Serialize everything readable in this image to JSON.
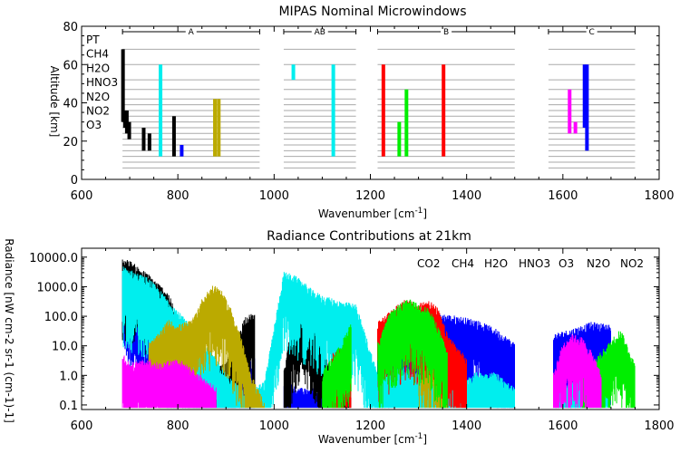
{
  "figure": {
    "background": "#ffffff",
    "molecule_colors": {
      "PT": "#000000",
      "CH4": "#ff0000",
      "H2O": "#0000ff",
      "HNO3": "#bbaa00",
      "N2O": "#00ee00",
      "NO2": "#ff00ff",
      "O3": "#00eeee"
    }
  },
  "chart_data": [
    {
      "type": "bar",
      "title": "MIPAS Nominal Microwindows",
      "xlabel": "Wavenumber [cm",
      "xlabel_sup": "-1",
      "xlabel_end": "]",
      "ylabel": "Altitude [km]",
      "xlim": [
        600,
        1800
      ],
      "ylim": [
        0,
        80
      ],
      "xticks": [
        "600",
        "800",
        "1000",
        "1200",
        "1400",
        "1600",
        "1800"
      ],
      "yticks": [
        "0",
        "20",
        "40",
        "60",
        "80"
      ],
      "grid": "horizontal gray lines at tangent altitudes within each band",
      "legend_position": "top-left",
      "legend": [
        "PT",
        "CH4",
        "H2O",
        "HNO3",
        "N2O",
        "NO2",
        "O3"
      ],
      "bands": [
        {
          "name": "A",
          "range": [
            685,
            970
          ]
        },
        {
          "name": "AB",
          "range": [
            1020,
            1170
          ]
        },
        {
          "name": "B",
          "range": [
            1215,
            1500
          ]
        },
        {
          "name": "C",
          "range": [
            1570,
            1750
          ]
        }
      ],
      "grid_altitudes": [
        6,
        9,
        12,
        15,
        18,
        21,
        24,
        27,
        30,
        33,
        36,
        39,
        42,
        47,
        52,
        60,
        68
      ],
      "microwindows": [
        {
          "molecule": "PT",
          "wavenumber": 686,
          "alt": [
            30,
            68
          ]
        },
        {
          "molecule": "PT",
          "wavenumber": 690,
          "alt": [
            27,
            36
          ]
        },
        {
          "molecule": "PT",
          "wavenumber": 694,
          "alt": [
            24,
            36
          ]
        },
        {
          "molecule": "PT",
          "wavenumber": 699,
          "alt": [
            21,
            30
          ]
        },
        {
          "molecule": "PT",
          "wavenumber": 729,
          "alt": [
            15,
            27
          ]
        },
        {
          "molecule": "PT",
          "wavenumber": 741,
          "alt": [
            15,
            24
          ]
        },
        {
          "molecule": "O3",
          "wavenumber": 764,
          "alt": [
            12,
            60
          ]
        },
        {
          "molecule": "PT",
          "wavenumber": 792,
          "alt": [
            12,
            33
          ]
        },
        {
          "molecule": "H2O",
          "wavenumber": 808,
          "alt": [
            12,
            18
          ]
        },
        {
          "molecule": "HNO3",
          "wavenumber": 877,
          "alt": [
            12,
            42
          ]
        },
        {
          "molecule": "HNO3",
          "wavenumber": 885,
          "alt": [
            12,
            42
          ]
        },
        {
          "molecule": "O3",
          "wavenumber": 1040,
          "alt": [
            52,
            60
          ]
        },
        {
          "molecule": "O3",
          "wavenumber": 1123,
          "alt": [
            12,
            60
          ]
        },
        {
          "molecule": "CH4",
          "wavenumber": 1227,
          "alt": [
            12,
            60
          ]
        },
        {
          "molecule": "N2O",
          "wavenumber": 1260,
          "alt": [
            12,
            30
          ]
        },
        {
          "molecule": "N2O",
          "wavenumber": 1275,
          "alt": [
            12,
            47
          ]
        },
        {
          "molecule": "CH4",
          "wavenumber": 1352,
          "alt": [
            12,
            60
          ]
        },
        {
          "molecule": "NO2",
          "wavenumber": 1614,
          "alt": [
            24,
            47
          ]
        },
        {
          "molecule": "NO2",
          "wavenumber": 1626,
          "alt": [
            24,
            30
          ]
        },
        {
          "molecule": "H2O",
          "wavenumber": 1645,
          "alt": [
            27,
            60
          ]
        },
        {
          "molecule": "H2O",
          "wavenumber": 1650,
          "alt": [
            15,
            60
          ]
        }
      ]
    },
    {
      "type": "line",
      "title": "Radiance Contributions at 21km",
      "xlabel": "Wavenumber [cm",
      "xlabel_sup": "-1",
      "xlabel_end": "]",
      "ylabel": "Radiance [nW cm-2 sr-1 (cm-1)-1]",
      "xlim": [
        600,
        1800
      ],
      "ylim": [
        0.1,
        20000
      ],
      "yscale": "log",
      "xticks": [
        "600",
        "800",
        "1000",
        "1200",
        "1400",
        "1600",
        "1800"
      ],
      "yticks": [
        "0.1",
        "1.0",
        "10.0",
        "100.0",
        "1000.0",
        "10000.0"
      ],
      "legend_position": "top-right",
      "legend": [
        "CO2",
        "CH4",
        "H2O",
        "HNO3",
        "O3",
        "N2O",
        "NO2"
      ],
      "series": [
        {
          "name": "H2O",
          "x": [
            685,
            720,
            760,
            800,
            840,
            880,
            920,
            960,
            1020,
            1060,
            1100,
            1160,
            1215,
            1260,
            1300,
            1340,
            1380,
            1420,
            1460,
            1500,
            1580,
            1620,
            1660,
            1700,
            1750
          ],
          "values": [
            3000,
            150,
            40,
            8,
            3,
            1.5,
            1,
            3,
            0.5,
            0.3,
            0.3,
            0.5,
            20,
            40,
            60,
            100,
            80,
            60,
            30,
            10,
            20,
            30,
            50,
            40,
            20
          ]
        },
        {
          "name": "CO2",
          "x": [
            685,
            700,
            740,
            780,
            820,
            860,
            900,
            940,
            960,
            1020,
            1040,
            1060,
            1080,
            1100,
            1120,
            1140,
            1160
          ],
          "values": [
            7000,
            6000,
            2000,
            500,
            10,
            1,
            2,
            80,
            100,
            1,
            100,
            150,
            100,
            10,
            1,
            0.3,
            0.2
          ]
        },
        {
          "name": "O3",
          "x": [
            685,
            700,
            740,
            780,
            820,
            860,
            900,
            940,
            980,
            1020,
            1040,
            1060,
            1080,
            1100,
            1140,
            1170,
            1215,
            1260,
            1300,
            1340,
            1380,
            1420,
            1460,
            1500,
            1580,
            1620,
            1660,
            1700,
            1750
          ],
          "values": [
            4000,
            3000,
            1500,
            300,
            50,
            8,
            1,
            0.2,
            0.5,
            2500,
            2000,
            1200,
            600,
            400,
            250,
            200,
            1,
            2,
            1,
            0.3,
            0.5,
            1,
            1,
            0.3,
            0.3,
            0.5,
            1,
            10,
            1
          ]
        },
        {
          "name": "HNO3",
          "x": [
            740,
            760,
            780,
            800,
            830,
            850,
            870,
            880,
            890,
            910,
            930,
            950,
            980,
            1200,
            1300,
            1320,
            1360,
            1500
          ],
          "values": [
            10,
            20,
            60,
            40,
            60,
            300,
            800,
            900,
            600,
            150,
            20,
            1,
            0.1,
            0.5,
            30,
            20,
            1,
            0.1
          ]
        },
        {
          "name": "CH4",
          "x": [
            1000,
            1060,
            1120,
            1160,
            1215,
            1250,
            1270,
            1300,
            1320,
            1340,
            1360,
            1400,
            1450,
            1500
          ],
          "values": [
            0.1,
            0.3,
            5,
            10,
            50,
            150,
            300,
            200,
            300,
            150,
            20,
            3,
            0.5,
            0.1
          ]
        },
        {
          "name": "N2O",
          "x": [
            700,
            760,
            800,
            960,
            1100,
            1140,
            1160,
            1215,
            1240,
            1260,
            1280,
            1300,
            1320,
            1340,
            1360,
            1500,
            1580,
            1640,
            1680,
            1720,
            1750
          ],
          "values": [
            0.5,
            1,
            0.3,
            0.3,
            1,
            10,
            50,
            10,
            100,
            200,
            300,
            200,
            150,
            40,
            5,
            0.5,
            0.5,
            1,
            5,
            30,
            2
          ]
        },
        {
          "name": "NO2",
          "x": [
            685,
            700,
            740,
            760,
            800,
            840,
            880,
            1580,
            1600,
            1620,
            1640,
            1660,
            1680
          ],
          "values": [
            5,
            2,
            3,
            2,
            3,
            1,
            0.3,
            1,
            10,
            20,
            15,
            5,
            1
          ]
        }
      ]
    }
  ]
}
